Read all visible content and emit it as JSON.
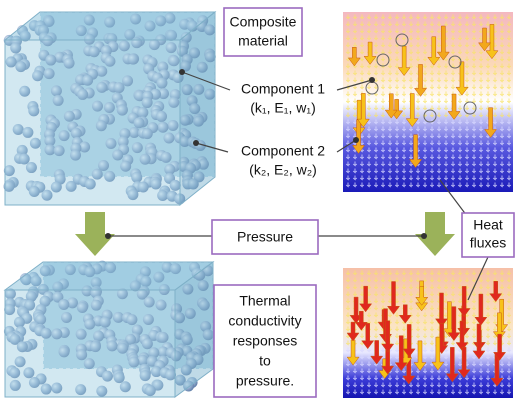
{
  "composite": {
    "lines": [
      "Composite",
      "material"
    ]
  },
  "component1": {
    "label": "Component 1",
    "params": "(k₁, E₁, w₁)"
  },
  "component2": {
    "label": "Component 2",
    "params": "(k₂, E₂, w₂)"
  },
  "pressure": "Pressure",
  "heat_fluxes": {
    "lines": [
      "Heat",
      "fluxes"
    ]
  },
  "response": {
    "lines": [
      "Thermal",
      "conductivity",
      "responses",
      "to",
      "pressure."
    ]
  }
}
